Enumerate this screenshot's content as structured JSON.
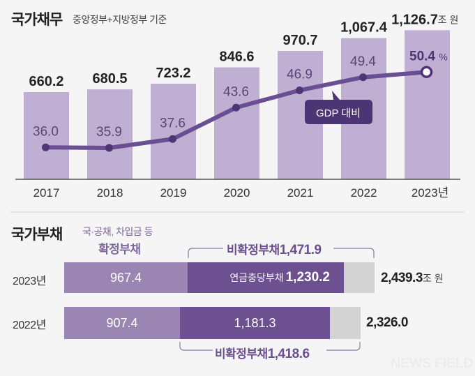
{
  "colors": {
    "background": "#f5f5f5",
    "bar_light": "#bfafd2",
    "line": "#6a4e93",
    "point": "#4f3575",
    "tag_bg": "#4d3575",
    "confirmed_seg": "#9b85b3",
    "unconfirmed_seg": "#6d5090",
    "other_seg": "#d3d3d3",
    "purple_text": "#6b4f8f"
  },
  "debt_section": {
    "title": "국가채무",
    "subtitle": "중앙정부+지방정부 기준",
    "unit": "조 원",
    "line_tag": "GDP 대비",
    "final_ratio_suffix": "%"
  },
  "liability_section": {
    "title": "국가부채",
    "confirmed_note": "국·공채, 차입금 등",
    "confirmed_label": "확정부채",
    "unit": "조 원",
    "rows": [
      {
        "year_label": "2023년",
        "confirmed": "967.4",
        "pension_label": "연금충당부채",
        "pension": "1,230.2",
        "total": "2,439.3",
        "unconfirmed_label": "비확정부채",
        "unconfirmed": "1,471.9"
      },
      {
        "year_label": "2022년",
        "confirmed": "907.4",
        "pension_label": "",
        "pension": "1,181.3",
        "total": "2,326.0",
        "unconfirmed_label": "비확정부채",
        "unconfirmed": "1,418.6"
      }
    ]
  },
  "watermark": "NEWS FIELD",
  "chart_data": [
    {
      "type": "bar",
      "title": "국가채무",
      "subtitle": "중앙정부+지방정부 기준",
      "categories": [
        "2017",
        "2018",
        "2019",
        "2020",
        "2021",
        "2022",
        "2023년"
      ],
      "series": [
        {
          "name": "국가채무 (조 원)",
          "type": "bar",
          "values": [
            660.2,
            680.5,
            723.2,
            846.6,
            970.7,
            1067.4,
            1126.7
          ],
          "labels": [
            "660.2",
            "680.5",
            "723.2",
            "846.6",
            "970.7",
            "1,067.4",
            "1,126.7"
          ]
        },
        {
          "name": "GDP 대비 (%)",
          "type": "line",
          "values": [
            36.0,
            35.9,
            37.6,
            43.6,
            46.9,
            49.4,
            50.4
          ],
          "labels": [
            "36.0",
            "35.9",
            "37.6",
            "43.6",
            "46.9",
            "49.4",
            "50.4"
          ]
        }
      ],
      "unit": "조 원",
      "annotations": [
        "GDP 대비"
      ],
      "grid": false
    },
    {
      "type": "bar",
      "stacked": true,
      "orientation": "horizontal",
      "title": "국가부채",
      "categories": [
        "2023년",
        "2022년"
      ],
      "series": [
        {
          "name": "확정부채",
          "values": [
            967.4,
            907.4
          ]
        },
        {
          "name": "연금충당부채",
          "values": [
            1230.2,
            1181.3
          ]
        },
        {
          "name": "기타 비확정부채",
          "values": [
            241.7,
            237.3
          ]
        }
      ],
      "totals": [
        2439.3,
        2326.0
      ],
      "unconfirmed_totals": [
        1471.9,
        1418.6
      ],
      "unit": "조 원"
    }
  ]
}
